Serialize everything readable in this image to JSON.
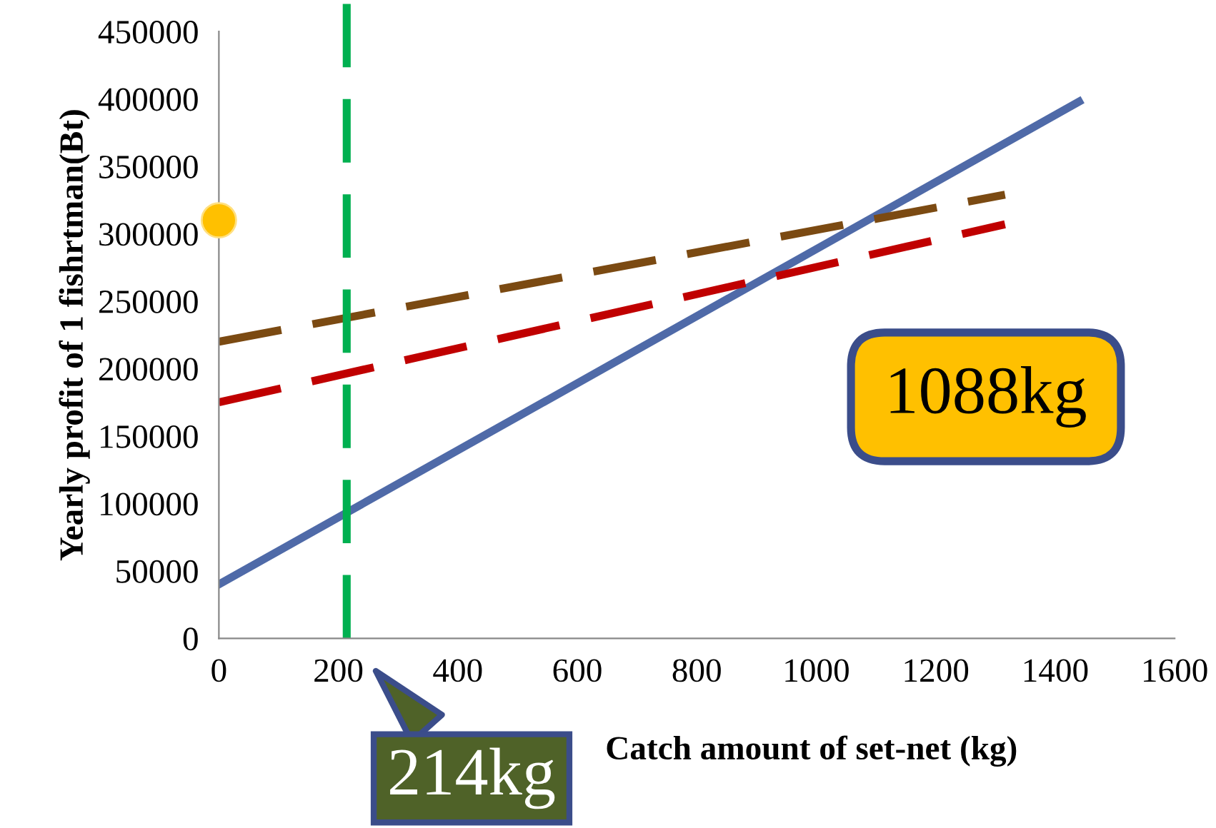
{
  "chart_data": {
    "type": "line",
    "xlabel": "Catch amount of set-net (kg)",
    "ylabel": "Yearly profit of 1 fishrtman(Bt)",
    "xlim": [
      0,
      1600
    ],
    "xticks": [
      0,
      200,
      400,
      600,
      800,
      1000,
      1200,
      1400,
      1600
    ],
    "ylim": [
      0,
      450000
    ],
    "yticks": [
      0,
      50000,
      100000,
      150000,
      200000,
      250000,
      300000,
      350000,
      400000,
      450000
    ],
    "grid": false,
    "legend": false,
    "series": [
      {
        "color": "#4f6aa8",
        "x": [
          0,
          1440
        ],
        "values": [
          40000,
          398000
        ],
        "line_style": "solid"
      },
      {
        "color": "#7b4a12",
        "x": [
          0,
          1316
        ],
        "values": [
          220000,
          329000
        ],
        "line_style": "dashed"
      },
      {
        "color": "#c00000",
        "x": [
          0,
          1316
        ],
        "values": [
          175000,
          307000
        ],
        "line_style": "dashed"
      },
      {
        "type": "scatter",
        "color": "#ffc000",
        "x": [
          0
        ],
        "values": [
          310000
        ],
        "marker": "circle"
      }
    ],
    "ref_lines": [
      {
        "axis": "x",
        "value": 214,
        "color": "#00b050",
        "line_style": "dashed"
      }
    ],
    "annotations": [
      {
        "text": "214kg",
        "x": 214,
        "y": 0
      },
      "1088kg"
    ]
  }
}
